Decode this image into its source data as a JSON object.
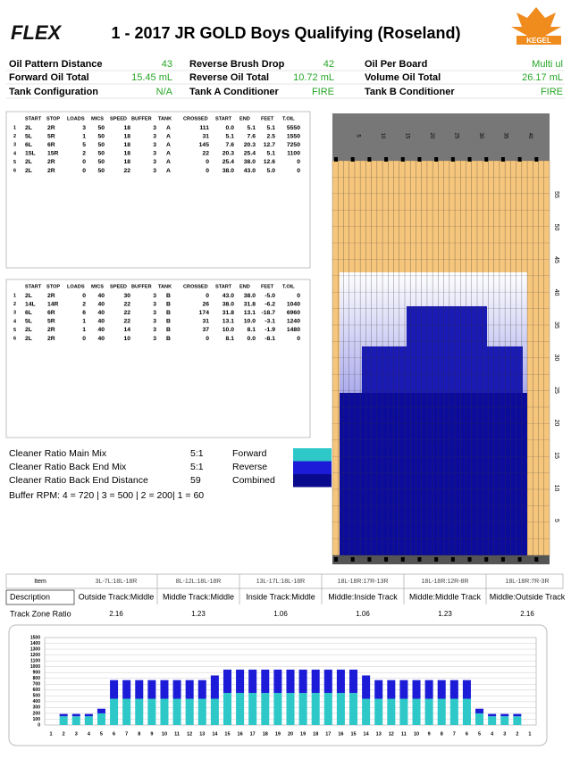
{
  "header": {
    "logo": "FLEX",
    "title": "1 - 2017 JR GOLD Boys Qualifying (Roseland)",
    "kegel_logo": "KEGEL"
  },
  "summary": [
    [
      "Oil Pattern Distance",
      "43",
      "Reverse Brush Drop",
      "42",
      "Oil Per Board",
      "Multi ul"
    ],
    [
      "Forward Oil Total",
      "15.45 mL",
      "Reverse Oil Total",
      "10.72 mL",
      "Volume Oil Total",
      "26.17 mL"
    ],
    [
      "Tank Configuration",
      "N/A",
      "Tank A Conditioner",
      "FIRE",
      "Tank B Conditioner",
      "FIRE"
    ]
  ],
  "forward_table": {
    "headers": [
      "START",
      "STOP",
      "LOADS",
      "MICS",
      "SPEED",
      "BUFFER",
      "TANK",
      "CROSSED",
      "START",
      "END",
      "FEET",
      "T.OIL"
    ],
    "rows": [
      [
        "1",
        "2L",
        "2R",
        "3",
        "50",
        "18",
        "3",
        "A",
        "111",
        "0.0",
        "5.1",
        "5.1",
        "5550"
      ],
      [
        "2",
        "5L",
        "5R",
        "1",
        "50",
        "18",
        "3",
        "A",
        "31",
        "5.1",
        "7.6",
        "2.5",
        "1550"
      ],
      [
        "3",
        "6L",
        "6R",
        "5",
        "50",
        "18",
        "3",
        "A",
        "145",
        "7.6",
        "20.3",
        "12.7",
        "7250"
      ],
      [
        "4",
        "15L",
        "15R",
        "2",
        "50",
        "18",
        "3",
        "A",
        "22",
        "20.3",
        "25.4",
        "5.1",
        "1100"
      ],
      [
        "5",
        "2L",
        "2R",
        "0",
        "50",
        "18",
        "3",
        "A",
        "0",
        "25.4",
        "38.0",
        "12.6",
        "0"
      ],
      [
        "6",
        "2L",
        "2R",
        "0",
        "50",
        "22",
        "3",
        "A",
        "0",
        "38.0",
        "43.0",
        "5.0",
        "0"
      ]
    ]
  },
  "reverse_table": {
    "headers": [
      "START",
      "STOP",
      "LOADS",
      "MICS",
      "SPEED",
      "BUFFER",
      "TANK",
      "CROSSED",
      "START",
      "END",
      "FEET",
      "T.OIL"
    ],
    "rows": [
      [
        "1",
        "2L",
        "2R",
        "0",
        "40",
        "30",
        "3",
        "B",
        "0",
        "43.0",
        "38.0",
        "-5.0",
        "0"
      ],
      [
        "2",
        "14L",
        "14R",
        "2",
        "40",
        "22",
        "3",
        "B",
        "26",
        "38.0",
        "31.8",
        "-6.2",
        "1040"
      ],
      [
        "3",
        "6L",
        "6R",
        "6",
        "40",
        "22",
        "3",
        "B",
        "174",
        "31.8",
        "13.1",
        "-18.7",
        "6960"
      ],
      [
        "4",
        "5L",
        "5R",
        "1",
        "40",
        "22",
        "3",
        "B",
        "31",
        "13.1",
        "10.0",
        "-3.1",
        "1240"
      ],
      [
        "5",
        "2L",
        "2R",
        "1",
        "40",
        "14",
        "3",
        "B",
        "37",
        "10.0",
        "8.1",
        "-1.9",
        "1480"
      ],
      [
        "6",
        "2L",
        "2R",
        "0",
        "40",
        "10",
        "3",
        "B",
        "0",
        "8.1",
        "0.0",
        "-8.1",
        "0"
      ]
    ]
  },
  "cleaner": [
    [
      "Cleaner Ratio Main Mix",
      "5:1"
    ],
    [
      "Cleaner Ratio Back End Mix",
      "5:1"
    ],
    [
      "Cleaner Ratio Back End Distance",
      "59"
    ]
  ],
  "buffer_rpm": "Buffer RPM: 4 = 720 | 3 = 500 | 2 = 200| 1 = 60",
  "legend": [
    {
      "name": "Forward",
      "color": "#2ec8c8"
    },
    {
      "name": "Reverse",
      "color": "#1c1cd8"
    },
    {
      "name": "Combined",
      "color": "#0a0a8c"
    }
  ],
  "lane_graph": {
    "board_labels": [
      "5",
      "10",
      "15",
      "20",
      "25",
      "30",
      "35",
      "40"
    ],
    "distance_labels": [
      "5",
      "10",
      "15",
      "20",
      "25",
      "30",
      "35",
      "40",
      "45",
      "50",
      "55"
    ]
  },
  "track_zone": {
    "item_label": "Item",
    "items": [
      "3L-7L:18L-18R",
      "8L-12L:18L-18R",
      "13L-17L:18L-18R",
      "18L-18R:17R-13R",
      "18L-18R:12R-8R",
      "18L-18R:7R-3R"
    ],
    "description_label": "Description",
    "descriptions": [
      "Outside Track:Middle",
      "Middle Track:Middle",
      "Inside Track:Middle",
      "Middle:Inside Track",
      "Middle:Middle Track",
      "Middle:Outside Track"
    ],
    "ratio_label": "Track Zone Ratio",
    "ratios": [
      "2.16",
      "1.23",
      "1.06",
      "1.06",
      "1.23",
      "2.16"
    ]
  },
  "chart_data": {
    "type": "bar",
    "stacked": true,
    "grid": true,
    "ylim": [
      0,
      1500
    ],
    "yticks": [
      0,
      100,
      200,
      300,
      400,
      500,
      600,
      700,
      800,
      900,
      1000,
      1100,
      1200,
      1300,
      1400,
      1500
    ],
    "categories": [
      "1",
      "2",
      "3",
      "4",
      "5",
      "6",
      "7",
      "8",
      "9",
      "10",
      "11",
      "12",
      "13",
      "14",
      "15",
      "16",
      "17",
      "18",
      "19",
      "20",
      "19",
      "18",
      "17",
      "16",
      "15",
      "14",
      "13",
      "12",
      "11",
      "10",
      "9",
      "8",
      "7",
      "6",
      "5",
      "4",
      "3",
      "2",
      "1"
    ],
    "series": [
      {
        "name": "Forward",
        "color": "#2ec8c8",
        "values": [
          0,
          150,
          150,
          150,
          200,
          450,
          450,
          450,
          450,
          450,
          450,
          450,
          450,
          450,
          550,
          550,
          550,
          550,
          550,
          550,
          550,
          550,
          550,
          550,
          550,
          450,
          450,
          450,
          450,
          450,
          450,
          450,
          450,
          450,
          200,
          150,
          150,
          150,
          0
        ]
      },
      {
        "name": "Reverse",
        "color": "#1c1cd8",
        "values": [
          0,
          40,
          40,
          40,
          80,
          320,
          320,
          320,
          320,
          320,
          320,
          320,
          320,
          400,
          400,
          400,
          400,
          400,
          400,
          400,
          400,
          400,
          400,
          400,
          400,
          400,
          320,
          320,
          320,
          320,
          320,
          320,
          320,
          320,
          80,
          40,
          40,
          40,
          0
        ]
      }
    ]
  }
}
